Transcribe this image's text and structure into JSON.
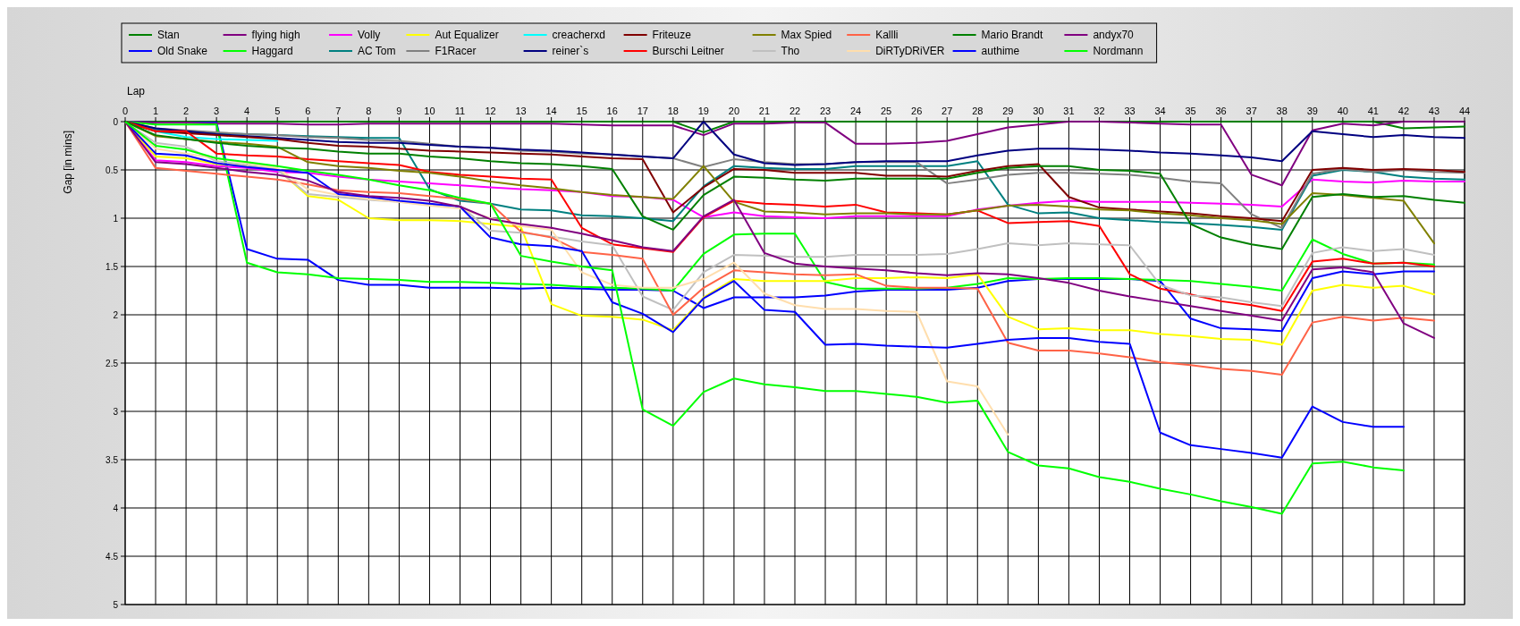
{
  "chart_data": {
    "type": "line",
    "xlabel": "Lap",
    "ylabel": "Gap [in mins]",
    "legend": "top",
    "grid": true,
    "x": [
      0,
      1,
      2,
      3,
      4,
      5,
      6,
      7,
      8,
      9,
      10,
      11,
      12,
      13,
      14,
      15,
      16,
      17,
      18,
      19,
      20,
      21,
      22,
      23,
      24,
      25,
      26,
      27,
      28,
      29,
      30,
      31,
      32,
      33,
      34,
      35,
      36,
      37,
      38,
      39,
      40,
      41,
      42,
      43,
      44
    ],
    "xlim": [
      0,
      44
    ],
    "xticks": [
      0,
      1,
      2,
      3,
      4,
      5,
      6,
      7,
      8,
      9,
      10,
      11,
      12,
      13,
      14,
      15,
      16,
      17,
      18,
      19,
      20,
      21,
      22,
      23,
      24,
      25,
      26,
      27,
      28,
      29,
      30,
      31,
      32,
      33,
      34,
      35,
      36,
      37,
      38,
      39,
      40,
      41,
      42,
      43,
      44
    ],
    "ylim": [
      5,
      0
    ],
    "yticks": [
      0,
      0.5,
      1,
      1.5,
      2,
      2.5,
      3,
      3.5,
      4,
      4.5,
      5
    ],
    "series": [
      {
        "name": "Stan",
        "color": "#008000",
        "values": [
          0,
          0,
          0,
          0,
          0,
          0,
          0,
          0,
          0,
          0,
          0,
          0,
          0,
          0,
          0,
          0,
          0,
          0,
          0,
          0.11,
          0,
          0,
          0,
          0,
          0,
          0,
          0,
          0,
          0,
          0,
          0,
          0,
          0,
          0,
          0,
          0,
          0,
          0,
          0,
          0,
          0,
          0,
          0.07,
          0.06,
          0.05
        ]
      },
      {
        "name": "Old Snake",
        "color": "#0000ff",
        "values": [
          0,
          0.01,
          0.01,
          0.01,
          1.32,
          1.42,
          1.43,
          1.64,
          1.69,
          1.69,
          1.72,
          1.72,
          1.72,
          1.73,
          1.72,
          1.73,
          1.74,
          1.74,
          1.75,
          1.93,
          1.82,
          1.82,
          1.82,
          1.8,
          1.76,
          1.74,
          1.74,
          1.74,
          1.72,
          1.65,
          1.63,
          1.63,
          1.63,
          1.63,
          1.65,
          2.04,
          2.14,
          2.15,
          2.17,
          1.62,
          1.55,
          1.58,
          1.55,
          1.55,
          null
        ]
      },
      {
        "name": "flying high",
        "color": "#800080",
        "values": [
          0,
          0.01,
          0.01,
          0.02,
          0.02,
          0.02,
          0.03,
          0.03,
          0.02,
          0.02,
          0.02,
          0.02,
          0.02,
          0.02,
          0.02,
          0.03,
          0.04,
          0.04,
          0.04,
          0.14,
          0.02,
          0.02,
          0.01,
          0.01,
          0.23,
          0.23,
          0.22,
          0.2,
          0.13,
          0.06,
          0.03,
          0,
          0,
          0.01,
          0.02,
          0.03,
          0.03,
          0.55,
          0.66,
          0.09,
          0.02,
          0.04,
          0,
          0,
          0
        ]
      },
      {
        "name": "Haggard",
        "color": "#00ff00",
        "values": [
          0,
          0.03,
          0.03,
          0.03,
          1.46,
          1.56,
          1.58,
          1.62,
          1.63,
          1.64,
          1.66,
          1.66,
          1.67,
          1.68,
          1.69,
          1.71,
          1.72,
          1.73,
          1.75,
          1.37,
          1.17,
          1.16,
          1.16,
          1.66,
          1.73,
          1.73,
          1.73,
          1.72,
          1.68,
          1.62,
          1.63,
          1.62,
          1.62,
          1.63,
          1.64,
          1.65,
          1.68,
          1.71,
          1.75,
          1.22,
          1.37,
          1.47,
          1.46,
          1.48,
          null
        ]
      },
      {
        "name": "Volly",
        "color": "#ff00ff",
        "values": [
          0,
          0.4,
          0.42,
          0.46,
          0.48,
          0.52,
          0.53,
          0.57,
          0.6,
          0.62,
          0.64,
          0.66,
          0.68,
          0.7,
          0.71,
          0.73,
          0.77,
          0.78,
          0.81,
          0.99,
          0.94,
          0.98,
          0.99,
          1.0,
          0.98,
          0.98,
          0.98,
          0.98,
          0.91,
          0.87,
          0.84,
          0.82,
          0.83,
          0.83,
          0.83,
          0.84,
          0.85,
          0.86,
          0.88,
          0.6,
          0.62,
          0.63,
          0.61,
          0.62,
          0.62
        ]
      },
      {
        "name": "AC Tom",
        "color": "#008080",
        "values": [
          0,
          0.08,
          0.11,
          0.12,
          0.13,
          0.14,
          0.15,
          0.16,
          0.17,
          0.17,
          0.7,
          0.82,
          0.85,
          0.91,
          0.92,
          0.97,
          0.98,
          1.0,
          1.03,
          0.67,
          0.46,
          0.48,
          0.49,
          0.49,
          0.46,
          0.46,
          0.46,
          0.46,
          0.41,
          0.86,
          0.95,
          0.94,
          1.0,
          1.02,
          1.04,
          1.05,
          1.07,
          1.09,
          1.12,
          0.56,
          0.5,
          0.52,
          0.57,
          0.59,
          0.6
        ]
      },
      {
        "name": "Aut Equalizer",
        "color": "#ffff00",
        "values": [
          0,
          0.36,
          0.38,
          0.44,
          0.46,
          0.49,
          0.77,
          0.81,
          1.0,
          1.02,
          1.02,
          1.03,
          1.06,
          1.09,
          1.89,
          2.01,
          2.02,
          2.05,
          2.16,
          1.82,
          1.63,
          1.65,
          1.65,
          1.65,
          1.62,
          1.62,
          1.61,
          1.62,
          1.58,
          2.02,
          2.15,
          2.14,
          2.16,
          2.16,
          2.2,
          2.22,
          2.25,
          2.26,
          2.31,
          1.75,
          1.69,
          1.72,
          1.7,
          1.79,
          null
        ]
      },
      {
        "name": "F1Racer",
        "color": "#808080",
        "values": [
          0,
          0.07,
          0.09,
          0.11,
          0.13,
          0.14,
          0.16,
          0.17,
          0.19,
          0.2,
          0.23,
          0.26,
          0.27,
          0.3,
          0.31,
          0.33,
          0.34,
          0.36,
          0.38,
          0.47,
          0.39,
          0.42,
          0.44,
          0.44,
          0.42,
          0.42,
          0.42,
          0.64,
          0.6,
          0.55,
          0.53,
          0.53,
          0.54,
          0.55,
          0.58,
          0.62,
          0.64,
          0.96,
          1.1,
          0.54,
          0.49,
          0.52,
          0.5,
          0.52,
          0.53
        ]
      },
      {
        "name": "creacherxd",
        "color": "#00ffff",
        "values": [
          0,
          0.1,
          0.16,
          0.18,
          0.19,
          0.2,
          null,
          null,
          null,
          null,
          null,
          null,
          null,
          null,
          null,
          null,
          null,
          null,
          null,
          null,
          null,
          null,
          null,
          null,
          null,
          null,
          null,
          null,
          null,
          null,
          null,
          null,
          null,
          null,
          null,
          null,
          null,
          null,
          null,
          null,
          null,
          null,
          null,
          null,
          null
        ]
      },
      {
        "name": "reiner`s",
        "color": "#000080",
        "values": [
          0,
          0.07,
          0.1,
          0.13,
          0.15,
          0.17,
          0.19,
          0.21,
          0.22,
          0.22,
          0.24,
          0.26,
          0.27,
          0.29,
          0.3,
          0.32,
          0.34,
          0.36,
          0.38,
          0,
          0.34,
          0.43,
          0.45,
          0.44,
          0.42,
          0.41,
          0.41,
          0.41,
          0.35,
          0.3,
          0.28,
          0.28,
          0.29,
          0.3,
          0.32,
          0.33,
          0.35,
          0.37,
          0.41,
          0.1,
          0.13,
          0.16,
          0.14,
          0.16,
          0.17
        ]
      },
      {
        "name": "Friteuze",
        "color": "#800000",
        "values": [
          0,
          0.1,
          0.12,
          0.14,
          0.16,
          0.18,
          0.22,
          0.25,
          0.26,
          0.28,
          0.3,
          0.31,
          0.32,
          0.33,
          0.34,
          0.36,
          0.38,
          0.39,
          0.94,
          0.68,
          0.49,
          0.5,
          0.53,
          0.53,
          0.53,
          0.56,
          0.56,
          0.57,
          0.51,
          0.46,
          0.44,
          0.78,
          0.89,
          0.91,
          0.93,
          0.95,
          0.98,
          1.0,
          1.03,
          0.5,
          0.48,
          0.5,
          0.49,
          0.5,
          0.52
        ]
      },
      {
        "name": "Burschi Leitner",
        "color": "#ff0000",
        "values": [
          0,
          0.1,
          0.1,
          0.33,
          0.35,
          0.36,
          0.39,
          0.41,
          0.43,
          0.45,
          0.52,
          0.55,
          0.57,
          0.59,
          0.6,
          1.1,
          1.27,
          1.31,
          1.35,
          0.99,
          0.82,
          0.85,
          0.86,
          0.88,
          0.86,
          0.94,
          0.95,
          0.96,
          0.92,
          1.05,
          1.04,
          1.03,
          1.08,
          1.58,
          1.73,
          1.79,
          1.86,
          1.9,
          1.96,
          1.45,
          1.42,
          1.47,
          1.46,
          1.5,
          null
        ]
      },
      {
        "name": "Max Spied",
        "color": "#808000",
        "values": [
          0,
          0.15,
          0.18,
          0.21,
          0.23,
          0.26,
          0.42,
          0.46,
          0.48,
          0.51,
          0.53,
          0.57,
          0.62,
          0.66,
          0.69,
          0.73,
          0.76,
          0.78,
          0.8,
          0.46,
          0.83,
          0.93,
          0.94,
          0.96,
          0.95,
          0.95,
          0.96,
          0.96,
          0.92,
          0.87,
          0.86,
          0.88,
          0.91,
          0.92,
          0.95,
          0.97,
          1.0,
          1.02,
          1.06,
          0.74,
          0.76,
          0.79,
          0.82,
          1.26,
          null
        ]
      },
      {
        "name": "Tho",
        "color": "#c0c0c0",
        "values": [
          0,
          0.22,
          0.26,
          0.41,
          0.45,
          0.5,
          0.75,
          0.78,
          0.81,
          0.83,
          0.86,
          0.87,
          1.13,
          1.15,
          1.19,
          1.24,
          1.28,
          1.81,
          1.95,
          1.56,
          1.38,
          1.39,
          1.4,
          1.4,
          1.38,
          1.38,
          1.38,
          1.37,
          1.32,
          1.26,
          1.28,
          1.26,
          1.27,
          1.28,
          1.69,
          1.8,
          1.82,
          1.87,
          1.91,
          1.36,
          1.3,
          1.34,
          1.32,
          1.38,
          null
        ]
      },
      {
        "name": "Kallli",
        "color": "#ff6347",
        "values": [
          0,
          0.48,
          0.51,
          0.54,
          0.57,
          0.6,
          0.65,
          0.71,
          0.73,
          0.74,
          0.77,
          0.8,
          0.85,
          1.14,
          1.2,
          1.35,
          1.38,
          1.42,
          2.0,
          1.72,
          1.54,
          1.56,
          1.58,
          1.59,
          1.58,
          1.7,
          1.72,
          1.72,
          1.73,
          2.29,
          2.37,
          2.37,
          2.4,
          2.44,
          2.49,
          2.52,
          2.56,
          2.58,
          2.62,
          2.08,
          2.02,
          2.06,
          2.03,
          2.06,
          null
        ]
      },
      {
        "name": "DiRTyDRiVER",
        "color": "#ffdead",
        "values": [
          0,
          0.28,
          0.33,
          0.38,
          0.43,
          0.48,
          0.7,
          0.76,
          0.8,
          0.83,
          0.87,
          0.9,
          1.0,
          1.08,
          1.12,
          1.56,
          1.69,
          1.72,
          1.72,
          1.63,
          1.46,
          1.78,
          1.9,
          1.94,
          1.94,
          1.96,
          1.97,
          2.69,
          2.74,
          3.24,
          null,
          null,
          null,
          null,
          null,
          null,
          null,
          null,
          null,
          null,
          null,
          null,
          null,
          null,
          null
        ]
      },
      {
        "name": "Mario Brandt",
        "color": "#008000",
        "values": [
          0,
          0.14,
          0.18,
          0.22,
          0.25,
          0.27,
          0.28,
          0.31,
          0.33,
          0.33,
          0.36,
          0.38,
          0.41,
          0.43,
          0.44,
          0.46,
          0.49,
          0.98,
          1.12,
          0.76,
          0.57,
          0.58,
          0.6,
          0.61,
          0.59,
          0.59,
          0.59,
          0.59,
          0.53,
          0.48,
          0.46,
          0.46,
          0.5,
          0.51,
          0.54,
          1.06,
          1.2,
          1.27,
          1.32,
          0.78,
          0.75,
          0.78,
          0.77,
          0.81,
          0.84
        ]
      },
      {
        "name": "authime",
        "color": "#0000ff",
        "values": [
          0,
          0.33,
          0.35,
          0.43,
          0.47,
          0.5,
          0.53,
          0.75,
          0.78,
          0.82,
          0.85,
          0.88,
          1.2,
          1.27,
          1.29,
          1.34,
          1.87,
          1.99,
          2.18,
          1.83,
          1.65,
          1.95,
          1.97,
          2.31,
          2.3,
          2.32,
          2.33,
          2.34,
          2.3,
          2.26,
          2.24,
          2.24,
          2.28,
          2.3,
          3.22,
          3.35,
          3.39,
          3.43,
          3.48,
          2.95,
          3.11,
          3.16,
          3.16,
          null,
          null
        ]
      },
      {
        "name": "andyx70",
        "color": "#800080",
        "values": [
          0,
          0.42,
          0.44,
          0.48,
          0.52,
          0.55,
          0.61,
          0.73,
          0.77,
          0.79,
          0.82,
          0.88,
          1.01,
          1.06,
          1.1,
          1.16,
          1.23,
          1.3,
          1.34,
          0.98,
          0.81,
          1.36,
          1.47,
          1.5,
          1.52,
          1.54,
          1.57,
          1.59,
          1.57,
          1.58,
          1.62,
          1.67,
          1.75,
          1.81,
          1.86,
          1.91,
          1.96,
          2.01,
          2.06,
          1.53,
          1.51,
          1.56,
          2.09,
          2.24,
          null
        ]
      },
      {
        "name": "Nordmann",
        "color": "#00ff00",
        "values": [
          0,
          0.25,
          0.29,
          0.38,
          0.42,
          0.46,
          0.51,
          0.55,
          0.6,
          0.66,
          0.71,
          0.79,
          0.85,
          1.39,
          1.45,
          1.5,
          1.54,
          2.98,
          3.15,
          2.8,
          2.66,
          2.72,
          2.75,
          2.79,
          2.79,
          2.82,
          2.85,
          2.91,
          2.89,
          3.42,
          3.56,
          3.59,
          3.68,
          3.73,
          3.8,
          3.86,
          3.93,
          3.99,
          4.06,
          3.54,
          3.52,
          3.58,
          3.61,
          null,
          null
        ]
      }
    ]
  }
}
